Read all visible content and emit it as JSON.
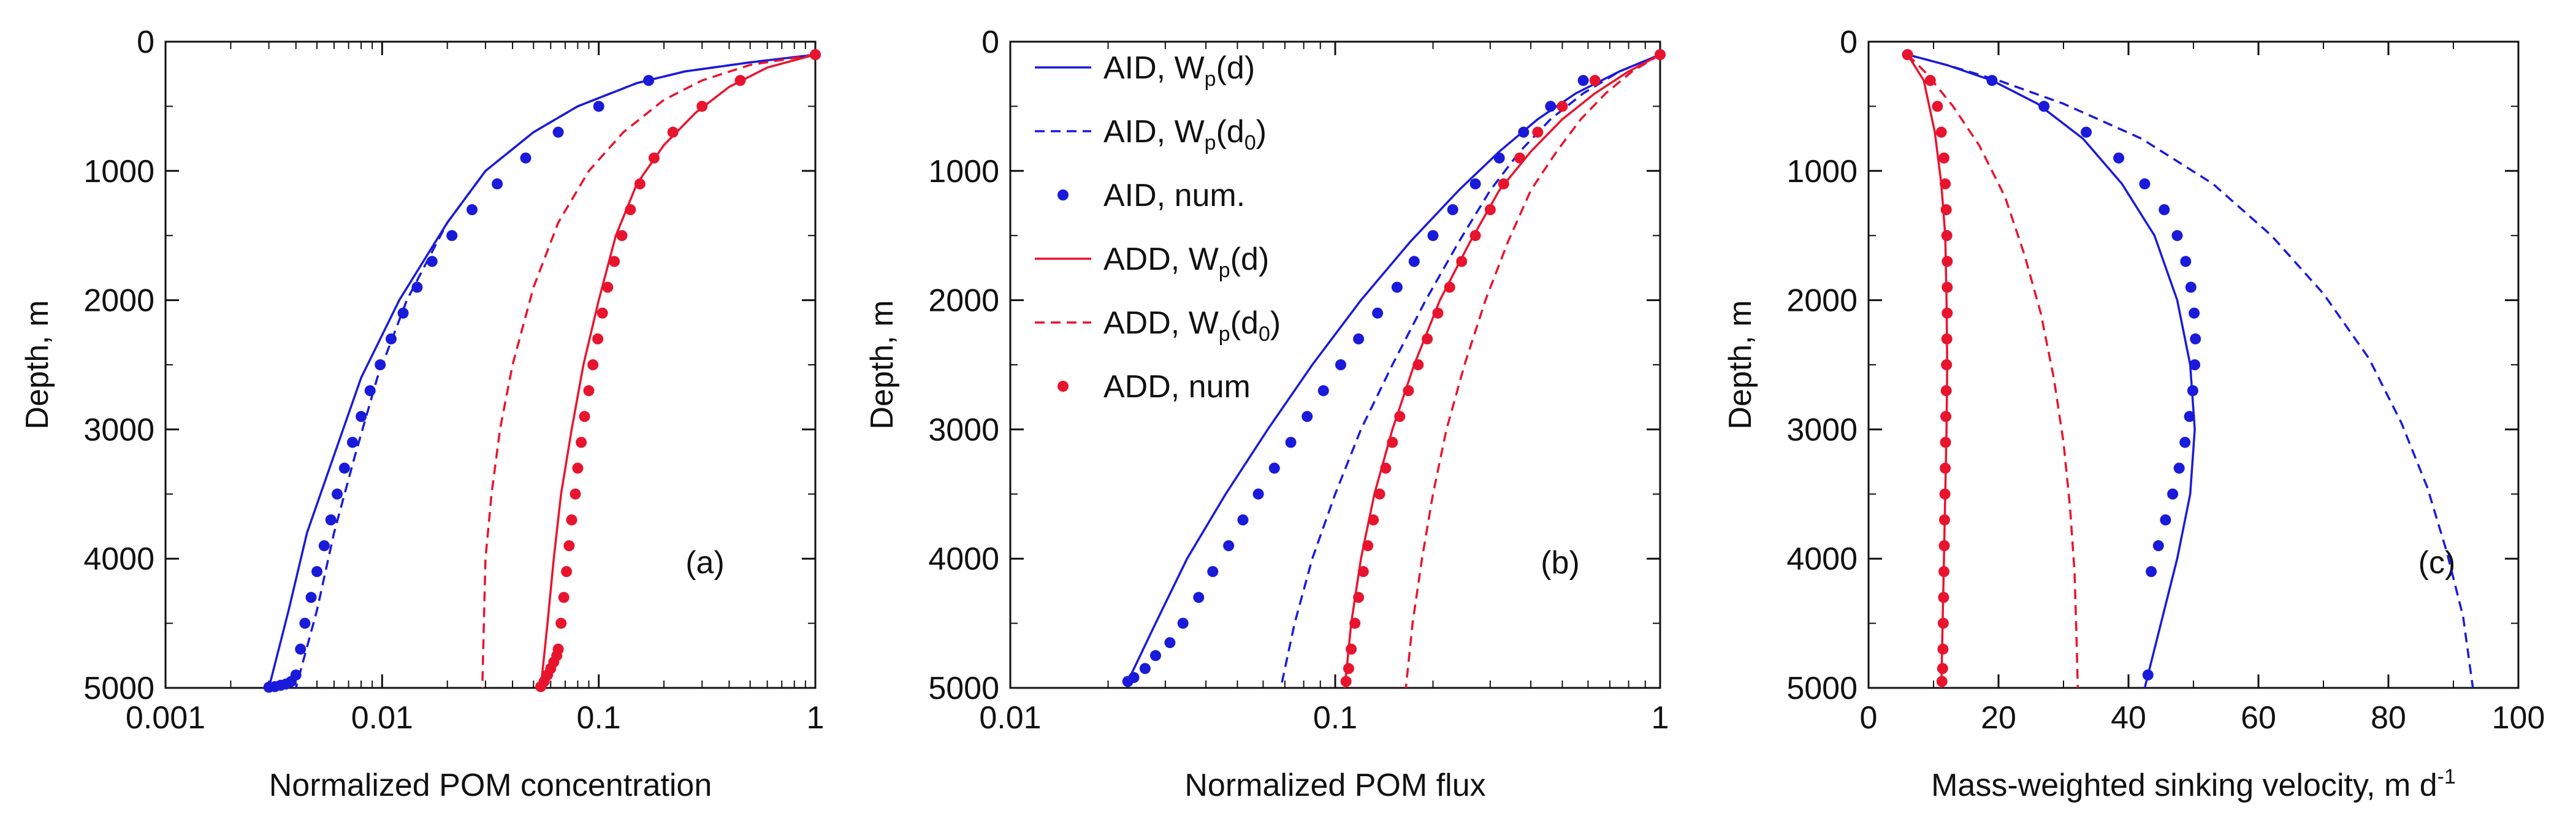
{
  "figure": {
    "legend": [
      {
        "label": "AID, ",
        "sym": "W",
        "sub": "p",
        "arg": "(d)",
        "argsub": "",
        "argend": "",
        "color": "#1a1adb",
        "style": "solid"
      },
      {
        "label": "AID, ",
        "sym": "W",
        "sub": "p",
        "arg": "(d",
        "argsub": "0",
        "argend": ")",
        "color": "#1a1adb",
        "style": "dashed"
      },
      {
        "label": "AID, num.",
        "sym": "",
        "sub": "",
        "arg": "",
        "argsub": "",
        "argend": "",
        "color": "#1a1adb",
        "style": "dots"
      },
      {
        "label": "ADD, ",
        "sym": "W",
        "sub": "p",
        "arg": "(d)",
        "argsub": "",
        "argend": "",
        "color": "#e8142e",
        "style": "solid"
      },
      {
        "label": "ADD, ",
        "sym": "W",
        "sub": "p",
        "arg": "(d",
        "argsub": "0",
        "argend": ")",
        "color": "#e8142e",
        "style": "dashed"
      },
      {
        "label": "ADD, num",
        "sym": "",
        "sub": "",
        "arg": "",
        "argsub": "",
        "argend": "",
        "color": "#e8142e",
        "style": "dots"
      }
    ]
  },
  "chart_data": [
    {
      "type": "line",
      "panel_label": "(a)",
      "xlabel": "Normalized POM concentration",
      "xlabel_super": "",
      "ylabel": "Depth, m",
      "xscale": "log",
      "xlim": [
        0.001,
        1
      ],
      "ylim": [
        0,
        5000
      ],
      "y_inverted": true,
      "xticks": [
        0.001,
        0.01,
        0.1,
        1
      ],
      "xtick_labels": [
        "0.001",
        "0.01",
        "0.1",
        "1"
      ],
      "yticks": [
        0,
        1000,
        2000,
        3000,
        4000,
        5000
      ],
      "ytick_labels": [
        "0",
        "1000",
        "2000",
        "3000",
        "4000",
        "5000"
      ],
      "series": [
        {
          "id": "aid-wpd",
          "color": "#1a1adb",
          "style": "solid",
          "x": [
            1,
            0.5,
            0.25,
            0.15,
            0.08,
            0.05,
            0.03,
            0.02,
            0.012,
            0.008,
            0.006,
            0.0045,
            0.0037,
            0.003
          ],
          "y": [
            100,
            160,
            230,
            320,
            500,
            700,
            1000,
            1400,
            2000,
            2600,
            3200,
            3800,
            4400,
            5000
          ]
        },
        {
          "id": "aid-wpd0",
          "color": "#1a1adb",
          "style": "dashed",
          "x": [
            1,
            0.5,
            0.25,
            0.15,
            0.08,
            0.05,
            0.03,
            0.02,
            0.013,
            0.0095,
            0.0075,
            0.006,
            0.005,
            0.004
          ],
          "y": [
            100,
            160,
            230,
            320,
            500,
            700,
            1000,
            1400,
            2000,
            2600,
            3200,
            3800,
            4400,
            5000
          ]
        },
        {
          "id": "aid-num",
          "color": "#1a1adb",
          "style": "dots",
          "x": [
            1,
            0.17,
            0.1,
            0.065,
            0.046,
            0.034,
            0.026,
            0.021,
            0.017,
            0.0145,
            0.0125,
            0.011,
            0.0098,
            0.0088,
            0.008,
            0.0073,
            0.0067,
            0.0062,
            0.0058,
            0.0054,
            0.005,
            0.0047,
            0.0044,
            0.0042,
            0.004,
            0.0038,
            0.0036,
            0.0034,
            0.0032,
            0.003
          ],
          "y": [
            100,
            300,
            500,
            700,
            900,
            1100,
            1300,
            1500,
            1700,
            1900,
            2100,
            2300,
            2500,
            2700,
            2900,
            3100,
            3300,
            3500,
            3700,
            3900,
            4100,
            4300,
            4500,
            4700,
            4900,
            4950,
            4970,
            4980,
            4990,
            4995
          ]
        },
        {
          "id": "add-wpd0",
          "color": "#e8142e",
          "style": "dashed",
          "x": [
            1,
            0.5,
            0.3,
            0.2,
            0.13,
            0.09,
            0.065,
            0.05,
            0.04,
            0.035,
            0.032,
            0.03,
            0.0295,
            0.029
          ],
          "y": [
            100,
            180,
            300,
            450,
            700,
            1000,
            1400,
            1900,
            2500,
            3000,
            3500,
            4000,
            4500,
            5000
          ]
        },
        {
          "id": "add-wpd",
          "color": "#e8142e",
          "style": "solid",
          "x": [
            1,
            0.6,
            0.4,
            0.28,
            0.2,
            0.15,
            0.12,
            0.1,
            0.085,
            0.075,
            0.067,
            0.062,
            0.058,
            0.054
          ],
          "y": [
            100,
            200,
            350,
            550,
            800,
            1100,
            1500,
            2000,
            2500,
            3000,
            3500,
            4000,
            4500,
            5000
          ]
        },
        {
          "id": "add-num",
          "color": "#e8142e",
          "style": "dots",
          "x": [
            1,
            0.45,
            0.3,
            0.22,
            0.18,
            0.155,
            0.14,
            0.128,
            0.118,
            0.11,
            0.104,
            0.099,
            0.094,
            0.09,
            0.086,
            0.083,
            0.08,
            0.078,
            0.075,
            0.073,
            0.071,
            0.069,
            0.067,
            0.065,
            0.064,
            0.062,
            0.06,
            0.058,
            0.056,
            0.054
          ],
          "y": [
            100,
            300,
            500,
            700,
            900,
            1100,
            1300,
            1500,
            1700,
            1900,
            2100,
            2300,
            2500,
            2700,
            2900,
            3100,
            3300,
            3500,
            3700,
            3900,
            4100,
            4300,
            4500,
            4700,
            4750,
            4800,
            4850,
            4900,
            4950,
            4990
          ]
        }
      ]
    },
    {
      "type": "line",
      "panel_label": "(b)",
      "xlabel": "Normalized POM flux",
      "xlabel_super": "",
      "ylabel": "Depth, m",
      "xscale": "log",
      "xlim": [
        0.01,
        1
      ],
      "ylim": [
        0,
        5000
      ],
      "y_inverted": true,
      "xticks": [
        0.01,
        0.1,
        1
      ],
      "xtick_labels": [
        "0.01",
        "0.1",
        "1"
      ],
      "yticks": [
        0,
        1000,
        2000,
        3000,
        4000,
        5000
      ],
      "ytick_labels": [
        "0",
        "1000",
        "2000",
        "3000",
        "4000",
        "5000"
      ],
      "series": [
        {
          "id": "aid-wpd",
          "color": "#1a1adb",
          "style": "solid",
          "x": [
            1,
            0.75,
            0.55,
            0.42,
            0.32,
            0.24,
            0.17,
            0.12,
            0.085,
            0.062,
            0.046,
            0.035,
            0.028,
            0.023
          ],
          "y": [
            100,
            230,
            400,
            600,
            850,
            1150,
            1550,
            2000,
            2500,
            3000,
            3500,
            4000,
            4500,
            4950
          ]
        },
        {
          "id": "aid-wpd0",
          "color": "#1a1adb",
          "style": "dashed",
          "x": [
            1,
            0.75,
            0.58,
            0.46,
            0.37,
            0.3,
            0.24,
            0.19,
            0.15,
            0.12,
            0.1,
            0.085,
            0.075,
            0.068
          ],
          "y": [
            100,
            230,
            400,
            600,
            850,
            1150,
            1550,
            2000,
            2500,
            3000,
            3500,
            4000,
            4500,
            5000
          ]
        },
        {
          "id": "aid-num",
          "color": "#1a1adb",
          "style": "dots",
          "x": [
            1,
            0.58,
            0.46,
            0.38,
            0.32,
            0.27,
            0.23,
            0.2,
            0.175,
            0.155,
            0.135,
            0.118,
            0.104,
            0.092,
            0.082,
            0.073,
            0.065,
            0.058,
            0.052,
            0.047,
            0.042,
            0.038,
            0.034,
            0.031,
            0.028,
            0.026,
            0.024,
            0.023
          ],
          "y": [
            100,
            300,
            500,
            700,
            900,
            1100,
            1300,
            1500,
            1700,
            1900,
            2100,
            2300,
            2500,
            2700,
            2900,
            3100,
            3300,
            3500,
            3700,
            3900,
            4100,
            4300,
            4500,
            4650,
            4750,
            4850,
            4920,
            4950
          ]
        },
        {
          "id": "add-wpd0",
          "color": "#e8142e",
          "style": "dashed",
          "x": [
            1,
            0.82,
            0.68,
            0.57,
            0.48,
            0.4,
            0.34,
            0.29,
            0.25,
            0.22,
            0.2,
            0.185,
            0.173,
            0.165
          ],
          "y": [
            100,
            230,
            400,
            600,
            850,
            1150,
            1550,
            2000,
            2500,
            3000,
            3500,
            4000,
            4500,
            5000
          ]
        },
        {
          "id": "add-wpd",
          "color": "#e8142e",
          "style": "solid",
          "x": [
            1,
            0.8,
            0.63,
            0.5,
            0.4,
            0.32,
            0.26,
            0.21,
            0.175,
            0.15,
            0.132,
            0.12,
            0.112,
            0.107
          ],
          "y": [
            100,
            230,
            400,
            600,
            850,
            1150,
            1550,
            2000,
            2500,
            3000,
            3500,
            4000,
            4500,
            5000
          ]
        },
        {
          "id": "add-num",
          "color": "#e8142e",
          "style": "dots",
          "x": [
            1,
            0.63,
            0.5,
            0.42,
            0.37,
            0.33,
            0.3,
            0.27,
            0.245,
            0.225,
            0.207,
            0.192,
            0.18,
            0.168,
            0.158,
            0.15,
            0.143,
            0.137,
            0.131,
            0.126,
            0.122,
            0.118,
            0.115,
            0.112,
            0.11,
            0.108
          ],
          "y": [
            100,
            300,
            500,
            700,
            900,
            1100,
            1300,
            1500,
            1700,
            1900,
            2100,
            2300,
            2500,
            2700,
            2900,
            3100,
            3300,
            3500,
            3700,
            3900,
            4100,
            4300,
            4500,
            4700,
            4850,
            4950
          ]
        }
      ]
    },
    {
      "type": "line",
      "panel_label": "(c)",
      "xlabel": "Mass-weighted sinking velocity, m d",
      "xlabel_super": "-1",
      "ylabel": "Depth, m",
      "xscale": "linear",
      "xlim": [
        0,
        100
      ],
      "ylim": [
        0,
        5000
      ],
      "y_inverted": true,
      "xticks": [
        0,
        20,
        40,
        60,
        80,
        100
      ],
      "xtick_labels": [
        "0",
        "20",
        "40",
        "60",
        "80",
        "100"
      ],
      "yticks": [
        0,
        1000,
        2000,
        3000,
        4000,
        5000
      ],
      "ytick_labels": [
        "0",
        "1000",
        "2000",
        "3000",
        "4000",
        "5000"
      ],
      "series": [
        {
          "id": "aid-wpd0",
          "color": "#1a1adb",
          "style": "dashed",
          "x": [
            6,
            12,
            20,
            30,
            42,
            53,
            62,
            70,
            77,
            82,
            86,
            89,
            91.5,
            93
          ],
          "y": [
            100,
            180,
            300,
            480,
            750,
            1100,
            1500,
            1950,
            2450,
            2950,
            3450,
            3950,
            4450,
            5000
          ]
        },
        {
          "id": "aid-wpd",
          "color": "#1a1adb",
          "style": "solid",
          "x": [
            6,
            12,
            19,
            26,
            33,
            39,
            44,
            47.5,
            49.5,
            50.2,
            49.5,
            47.5,
            45,
            42.5
          ],
          "y": [
            100,
            180,
            300,
            480,
            750,
            1100,
            1500,
            2000,
            2500,
            3000,
            3500,
            4000,
            4500,
            5000
          ]
        },
        {
          "id": "aid-num",
          "color": "#1a1adb",
          "style": "dots",
          "x": [
            6,
            19,
            27,
            33.5,
            38.5,
            42.5,
            45.5,
            47.5,
            48.8,
            49.6,
            50.1,
            50.3,
            50.2,
            49.9,
            49.4,
            48.7,
            47.8,
            46.8,
            45.7,
            44.6,
            43.5,
            43
          ],
          "y": [
            100,
            300,
            500,
            700,
            900,
            1100,
            1300,
            1500,
            1700,
            1900,
            2100,
            2300,
            2500,
            2700,
            2900,
            3100,
            3300,
            3500,
            3700,
            3900,
            4100,
            4900
          ]
        },
        {
          "id": "add-wpd0",
          "color": "#e8142e",
          "style": "dashed",
          "x": [
            6,
            9,
            13,
            17,
            21,
            24,
            26.5,
            28.5,
            30,
            31,
            31.7,
            32,
            32.2
          ],
          "y": [
            100,
            250,
            500,
            800,
            1200,
            1650,
            2100,
            2600,
            3100,
            3600,
            4100,
            4600,
            5000
          ]
        },
        {
          "id": "add-wpd",
          "color": "#e8142e",
          "style": "solid",
          "x": [
            6,
            8.5,
            10.2,
            11.2,
            11.8,
            12,
            12.1,
            12,
            11.8,
            11.6,
            11.4,
            11.2
          ],
          "y": [
            100,
            300,
            700,
            1100,
            1500,
            2000,
            2500,
            3000,
            3500,
            4000,
            4500,
            5000
          ]
        },
        {
          "id": "add-num",
          "color": "#e8142e",
          "style": "dots",
          "x": [
            6,
            9.5,
            10.6,
            11.2,
            11.6,
            11.8,
            11.95,
            12.05,
            12.1,
            12.1,
            12.1,
            12.05,
            12,
            11.95,
            11.9,
            11.85,
            11.8,
            11.75,
            11.7,
            11.65,
            11.6,
            11.55,
            11.5,
            11.45,
            11.4,
            11.3
          ],
          "y": [
            100,
            300,
            500,
            700,
            900,
            1100,
            1300,
            1500,
            1700,
            1900,
            2100,
            2300,
            2500,
            2700,
            2900,
            3100,
            3300,
            3500,
            3700,
            3900,
            4100,
            4300,
            4500,
            4700,
            4850,
            4950
          ]
        }
      ]
    }
  ]
}
